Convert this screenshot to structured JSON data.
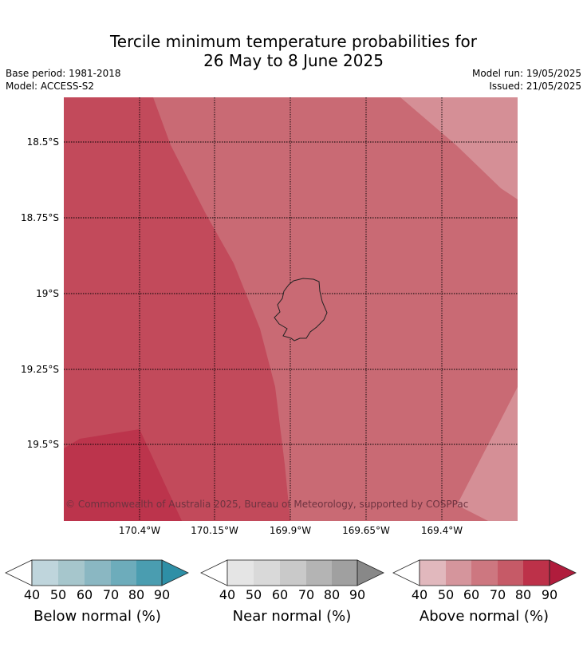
{
  "title": {
    "line1": "Tercile minimum temperature probabilities for",
    "line2": "26 May to 8 June 2025"
  },
  "meta": {
    "base_period": "Base period: 1981-2018",
    "model": "Model: ACCESS-S2",
    "model_run": "Model run: 19/05/2025",
    "issued": "Issued: 21/05/2025"
  },
  "map": {
    "lat_labels": [
      "18.5°S",
      "18.75°S",
      "19°S",
      "19.25°S",
      "19.5°S"
    ],
    "lon_labels": [
      "170.4°W",
      "170.15°W",
      "169.9°W",
      "169.65°W",
      "169.4°W"
    ],
    "credit": "© Commonwealth of Australia 2025, Bureau of Meteorology, supported by COSPPac",
    "region_colors": {
      "above_80_90": "#bc344c",
      "above_70_80": "#c24a5b",
      "above_60_70": "#c96a74",
      "above_50_60": "#d58f96"
    }
  },
  "colorbars": {
    "ticks": [
      "40",
      "50",
      "60",
      "70",
      "80",
      "90"
    ],
    "below": {
      "label": "Below normal (%)",
      "colors": [
        "#bfd5dc",
        "#a6c6cc",
        "#8ab7c2",
        "#6dacbb",
        "#4a9db0",
        "#2e8fa6"
      ]
    },
    "near": {
      "label": "Near normal (%)",
      "colors": [
        "#e5e5e5",
        "#d9d9d9",
        "#c9c9c9",
        "#b4b4b4",
        "#a0a0a0",
        "#888888"
      ]
    },
    "above": {
      "label": "Above normal (%)",
      "colors": [
        "#e1b8bd",
        "#d5959c",
        "#cd7780",
        "#c65a67",
        "#bd3149",
        "#b01c3c"
      ]
    }
  }
}
